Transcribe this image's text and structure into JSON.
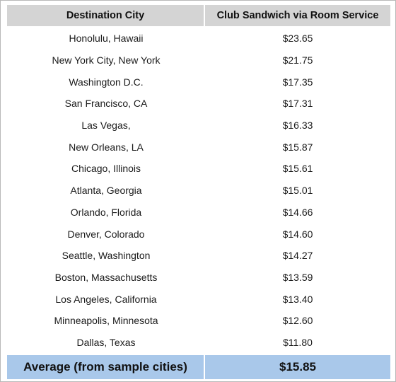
{
  "table": {
    "headers": [
      "Destination City",
      "Club Sandwich via Room Service"
    ],
    "rows": [
      {
        "city": "Honolulu, Hawaii",
        "price": "$23.65"
      },
      {
        "city": "New York City, New York",
        "price": "$21.75"
      },
      {
        "city": "Washington D.C.",
        "price": "$17.35"
      },
      {
        "city": "San Francisco, CA",
        "price": "$17.31"
      },
      {
        "city": "Las Vegas,",
        "price": "$16.33"
      },
      {
        "city": "New Orleans, LA",
        "price": "$15.87"
      },
      {
        "city": "Chicago, Illinois",
        "price": "$15.61"
      },
      {
        "city": "Atlanta, Georgia",
        "price": "$15.01"
      },
      {
        "city": "Orlando, Florida",
        "price": "$14.66"
      },
      {
        "city": "Denver, Colorado",
        "price": "$14.60"
      },
      {
        "city": "Seattle, Washington",
        "price": "$14.27"
      },
      {
        "city": "Boston, Massachusetts",
        "price": "$13.59"
      },
      {
        "city": "Los Angeles, California",
        "price": "$13.40"
      },
      {
        "city": "Minneapolis, Minnesota",
        "price": "$12.60"
      },
      {
        "city": "Dallas, Texas",
        "price": "$11.80"
      }
    ],
    "average": {
      "label": "Average (from sample cities)",
      "price": "$15.85"
    }
  },
  "colors": {
    "header_bg": "#d4d4d4",
    "average_bg": "#a9c8ea"
  }
}
